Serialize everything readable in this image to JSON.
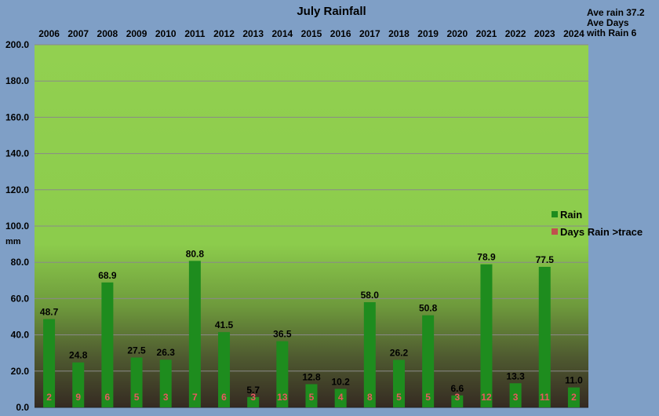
{
  "chart_data": {
    "type": "bar",
    "title": "July Rainfall",
    "categories": [
      "2006",
      "2007",
      "2008",
      "2009",
      "2010",
      "2011",
      "2012",
      "2013",
      "2014",
      "2015",
      "2016",
      "2017",
      "2018",
      "2019",
      "2020",
      "2021",
      "2022",
      "2023",
      "2024"
    ],
    "series": [
      {
        "name": "Rain",
        "values": [
          48.7,
          24.8,
          68.9,
          27.5,
          26.3,
          80.8,
          41.5,
          5.7,
          36.5,
          12.8,
          10.2,
          58.0,
          26.2,
          50.8,
          6.6,
          78.9,
          13.3,
          77.5,
          11.0
        ],
        "color": "#1e8c1e"
      },
      {
        "name": "Days Rain >trace",
        "values": [
          2,
          9,
          6,
          5,
          3,
          7,
          6,
          3,
          13,
          5,
          4,
          8,
          5,
          5,
          3,
          12,
          3,
          11,
          2
        ],
        "color": "#c0504d"
      }
    ],
    "rain_labels": [
      "48.7",
      "24.8",
      "68.9",
      "27.5",
      "26.3",
      "80.8",
      "41.5",
      "5.7",
      "36.5",
      "12.8",
      "10.2",
      "58.0",
      "26.2",
      "50.8",
      "6.6",
      "78.9",
      "13.3",
      "77.5",
      "11.0"
    ],
    "ylabel": "mm",
    "ylim": [
      0,
      200
    ],
    "yticks": [
      "0.0",
      "20.0",
      "40.0",
      "60.0",
      "80.0",
      "100.0",
      "120.0",
      "140.0",
      "160.0",
      "180.0",
      "200.0"
    ],
    "grid": true,
    "legend_position": "right",
    "x_labels_position": "top"
  },
  "notes": {
    "line1": "Ave rain 37.2",
    "line2": "Ave Days",
    "line3": "with Rain 6"
  },
  "colors": {
    "plot_top": "#92d050",
    "plot_bottom": "#3a2e24",
    "background": "#7f9fc6",
    "bar": "#1e8c1e",
    "days": "#c0504d"
  }
}
